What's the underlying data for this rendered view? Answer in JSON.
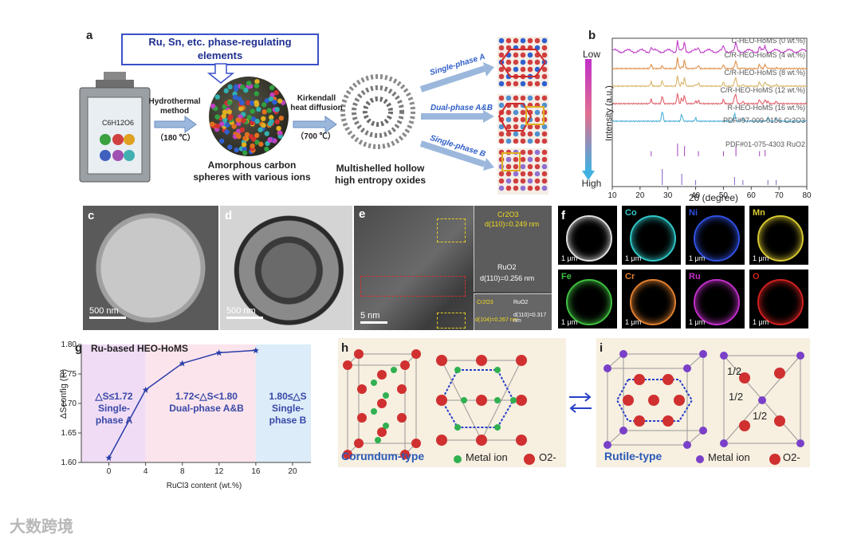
{
  "panel_a": {
    "label": "a",
    "box_text_line1": "Ru, Sn, etc. phase-regulating",
    "box_text_line2": "elements",
    "hydro_line1": "Hydrothermal",
    "hydro_line2": "method",
    "hydro_temp": "（180 ℃）",
    "reactor_formula": "C6H12O6",
    "amorph_line1": "Amorphous carbon",
    "amorph_line2": "spheres with various ions",
    "kirk_line1": "Kirkendall",
    "kirk_line2": "heat diffusion",
    "kirk_temp": "（700 ℃）",
    "hollow_line1": "Multishelled hollow",
    "hollow_line2": "high entropy oxides",
    "arrow_a": "Single-phase A",
    "arrow_ab": "Dual-phase A&B",
    "arrow_b": "Single-phase B"
  },
  "panel_b": {
    "label": "b",
    "low": "Low",
    "high": "High",
    "ylabel": "Intensity (a.u.)",
    "xlabel": "2θ (degree)",
    "traces": [
      {
        "name": "C-HEO-HoMS (0 wt.%)",
        "color": "#c03cc8"
      },
      {
        "name": "C/R-HEO-HoMS (4 wt.%)",
        "color": "#e0904a"
      },
      {
        "name": "C/R-HEO-HoMS (8 wt.%)",
        "color": "#d9b56a"
      },
      {
        "name": "C/R-HEO-HoMS (12 wt.%)",
        "color": "#e0606a"
      },
      {
        "name": "R-HEO-HoMS (16 wt.%)",
        "color": "#4fb0d8"
      },
      {
        "name": "PDF#97-009-0156 Cr2O3",
        "color": "#a040b8"
      },
      {
        "name": "PDF#01-075-4303 RuO2",
        "color": "#8060c0"
      }
    ],
    "xticks": [
      "10",
      "20",
      "30",
      "40",
      "50",
      "60",
      "70",
      "80"
    ]
  },
  "panel_c": {
    "label": "c",
    "scale": "500 nm"
  },
  "panel_d": {
    "label": "d",
    "scale": "500 nm"
  },
  "panel_e": {
    "label": "e",
    "scale": "5 nm",
    "cr2o3": "Cr2O3",
    "d1": "d(110)=0.249 nm",
    "ruo2": "RuO2",
    "d2": "d(110)=0.256 nm",
    "sub_cr": "Cr2O3",
    "sub_ru": "RuO2",
    "sub_d1": "d(104)=0.267 nm",
    "sub_d2": "d(110)=0.317 nm"
  },
  "panel_f": {
    "label": "f",
    "scale": "1 μm",
    "maps": [
      {
        "el": "",
        "color": "#e0e0e0"
      },
      {
        "el": "Co",
        "color": "#30c8c8"
      },
      {
        "el": "Ni",
        "color": "#3050e0"
      },
      {
        "el": "Mn",
        "color": "#d8c830"
      },
      {
        "el": "Fe",
        "color": "#40c040"
      },
      {
        "el": "Cr",
        "color": "#e08030"
      },
      {
        "el": "Ru",
        "color": "#c030c8"
      },
      {
        "el": "O",
        "color": "#d02020"
      }
    ]
  },
  "panel_g": {
    "label": "g",
    "title": "Ru-based HEO-HoMS",
    "ylabel": "ΔSconfig (R)",
    "xlabel": "RuCl3 content (wt.%)",
    "region_a_line1": "△S≤1.72",
    "region_a_line2": "Single-",
    "region_a_line3": "phase A",
    "region_ab_line1": "1.72<△S<1.80",
    "region_ab_line2": "Dual-phase A&B",
    "region_b_line1": "1.80≤△S",
    "region_b_line2": "Single-",
    "region_b_line3": "phase B"
  },
  "chart_data": {
    "type": "line",
    "title": "Ru-based HEO-HoMS",
    "xlabel": "RuCl3 content (wt.%)",
    "ylabel": "ΔSconfig (R)",
    "x": [
      0,
      4,
      8,
      12,
      16
    ],
    "y": [
      1.608,
      1.723,
      1.768,
      1.786,
      1.79
    ],
    "xlim": [
      -3,
      22
    ],
    "ylim": [
      1.6,
      1.8
    ],
    "xticks": [
      "0",
      "4",
      "8",
      "12",
      "16",
      "20"
    ],
    "yticks": [
      "1.60",
      "1.65",
      "1.70",
      "1.75",
      "1.80"
    ],
    "color": "#2a3ea8"
  },
  "panel_h": {
    "label": "h",
    "name": "Corundum-type",
    "legend_metal": "Metal ion",
    "legend_o": "O2-"
  },
  "panel_i": {
    "label": "i",
    "name": "Rutile-type",
    "legend_metal": "Metal ion",
    "legend_o": "O2-",
    "half": "1/2"
  },
  "watermark": "大数跨境"
}
